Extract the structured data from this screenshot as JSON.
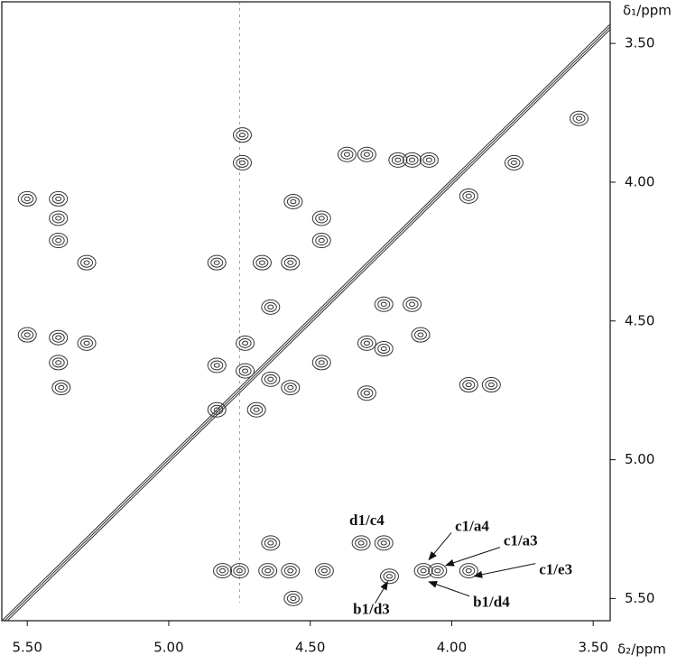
{
  "chart_data": {
    "type": "contour",
    "xlabel": "δ₂/ppm",
    "ylabel": "δ₁/ppm",
    "xlim": [
      5.59,
      3.44
    ],
    "ylim": [
      5.58,
      3.35
    ],
    "xticks": [
      {
        "value": 5.5,
        "label": "5.50"
      },
      {
        "value": 5.0,
        "label": "5.00"
      },
      {
        "value": 4.5,
        "label": "4.50"
      },
      {
        "value": 4.0,
        "label": "4.00"
      },
      {
        "value": 3.5,
        "label": "3.50"
      }
    ],
    "yticks": [
      {
        "value": 3.5,
        "label": "3.50"
      },
      {
        "value": 4.0,
        "label": "4.00"
      },
      {
        "value": 4.5,
        "label": "4.50"
      },
      {
        "value": 5.0,
        "label": "5.00"
      },
      {
        "value": 5.5,
        "label": "5.50"
      }
    ],
    "color": "#333333",
    "peaks": {
      "x": [
        4.81,
        4.75,
        4.65,
        4.57,
        4.45,
        4.22,
        4.1,
        4.05,
        3.94,
        4.64,
        4.32,
        4.24,
        4.56,
        4.74,
        4.74,
        4.56,
        4.46,
        4.46,
        4.37,
        4.3,
        4.19,
        4.14,
        4.08,
        3.94,
        3.78,
        3.55,
        5.5,
        5.39,
        5.39,
        5.39,
        5.29,
        5.5,
        5.39,
        5.29,
        5.39,
        5.38,
        4.83,
        4.67,
        4.57,
        4.64,
        4.73,
        4.83,
        4.73,
        4.64,
        4.57,
        4.83,
        4.69,
        4.46,
        4.3,
        4.24,
        4.3,
        4.24,
        4.14,
        4.11,
        3.94,
        3.86
      ],
      "y": [
        5.4,
        5.4,
        5.4,
        5.4,
        5.4,
        5.42,
        5.4,
        5.4,
        5.4,
        5.3,
        5.3,
        5.3,
        5.5,
        3.83,
        3.93,
        4.07,
        4.13,
        4.21,
        3.9,
        3.9,
        3.92,
        3.92,
        3.92,
        4.05,
        3.93,
        3.77,
        4.06,
        4.06,
        4.13,
        4.21,
        4.29,
        4.55,
        4.56,
        4.58,
        4.65,
        4.74,
        4.29,
        4.29,
        4.29,
        4.45,
        4.58,
        4.66,
        4.68,
        4.71,
        4.74,
        4.82,
        4.82,
        4.65,
        4.58,
        4.6,
        4.76,
        4.44,
        4.44,
        4.55,
        4.73,
        4.73
      ]
    },
    "annotations": [
      {
        "text": "d1/c4",
        "x": 4.3,
        "y": 5.3
      },
      {
        "text": "c1/a4",
        "x": 4.1,
        "y": 5.38
      },
      {
        "text": "c1/a3",
        "x": 4.04,
        "y": 5.4
      },
      {
        "text": "c1/e3",
        "x": 3.94,
        "y": 5.4
      },
      {
        "text": "b1/d3",
        "x": 4.22,
        "y": 5.42
      },
      {
        "text": "b1/d4",
        "x": 4.1,
        "y": 5.42
      }
    ]
  }
}
